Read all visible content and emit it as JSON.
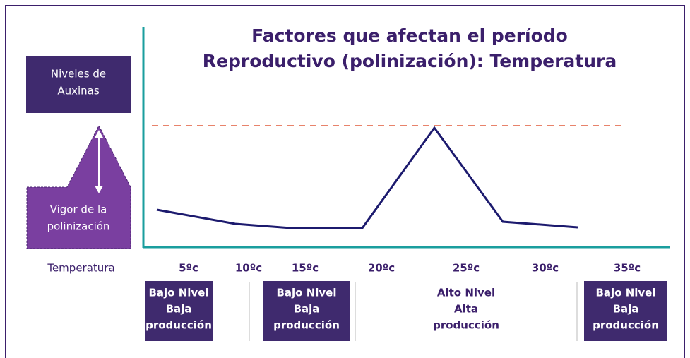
{
  "title": {
    "lines": [
      "Factores que afectan el período",
      "Reproductivo (polinización): Temperatura"
    ]
  },
  "auxin_box": {
    "lines": [
      "Niveles de",
      "Auxinas"
    ]
  },
  "vigor_box": {
    "lines": [
      "Vigor de la",
      "polinización"
    ]
  },
  "x_label": "Temperatura",
  "temperatures": [
    "5ºc",
    "10ºc",
    "15ºc",
    "20ºc",
    "25ºc",
    "30ºc",
    "35ºc"
  ],
  "bands": [
    {
      "lines": [
        "Bajo Nivel",
        "Baja",
        "producción"
      ]
    },
    {
      "lines": [
        "Bajo Nivel",
        "Baja",
        "producción"
      ]
    },
    {
      "lines": [
        "Alto Nivel",
        "Alta",
        "producción"
      ]
    },
    {
      "lines": [
        "Bajo Nivel",
        "Baja",
        "producción"
      ]
    }
  ]
}
